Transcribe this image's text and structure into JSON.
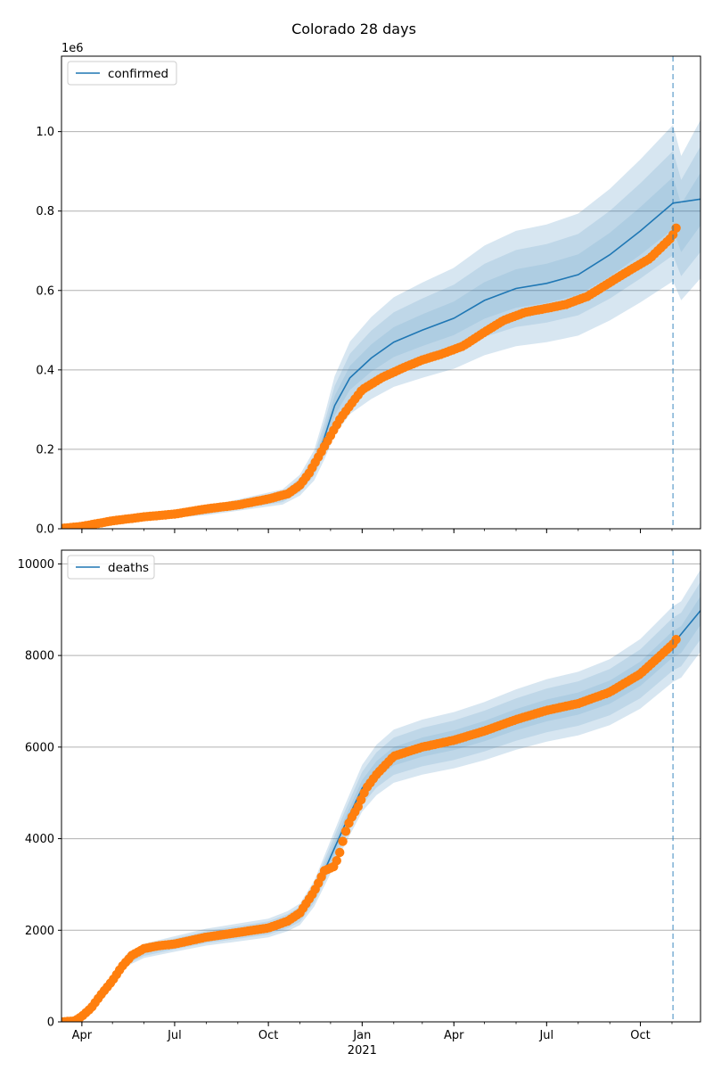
{
  "figure": {
    "title": "Colorado 28 days",
    "colors": {
      "model": "#1f77b4",
      "observed": "#ff7f0e",
      "band": "#1f77b4",
      "grid": "#b0b0b0",
      "cutoff": "#1f77b4"
    }
  },
  "chart_data": [
    {
      "type": "line",
      "name": "confirmed",
      "legend": {
        "label": "confirmed",
        "placement": "top-left"
      },
      "x_range": [
        "2020-03-12",
        "2021-11-29"
      ],
      "ylim": [
        0,
        1190000
      ],
      "y_offset_label": "1e6",
      "y_ticks": [
        0,
        200000,
        400000,
        600000,
        800000,
        1000000
      ],
      "y_tick_labels": [
        "0.0",
        "0.2",
        "0.4",
        "0.6",
        "0.8",
        "1.0"
      ],
      "x_ticks": [
        "2020-04-01",
        "2020-07-01",
        "2020-10-01",
        "2021-01-01",
        "2021-04-01",
        "2021-07-01",
        "2021-10-01"
      ],
      "x_tick_labels": [
        "",
        "",
        "",
        "",
        "",
        "",
        ""
      ],
      "grid": "horizontal",
      "forecast_start": "2021-11-02",
      "model_x": [
        "2020-03-12",
        "2020-05-01",
        "2020-08-01",
        "2020-10-15",
        "2020-11-01",
        "2020-11-15",
        "2020-11-25",
        "2020-12-05",
        "2020-12-20",
        "2021-01-10",
        "2021-02-01",
        "2021-03-01",
        "2021-04-01",
        "2021-05-01",
        "2021-06-01",
        "2021-07-01",
        "2021-08-01",
        "2021-09-01",
        "2021-10-01",
        "2021-11-02",
        "2021-11-29"
      ],
      "model_y": [
        2000,
        20000,
        45000,
        80000,
        110000,
        160000,
        230000,
        310000,
        380000,
        430000,
        470000,
        500000,
        530000,
        575000,
        605000,
        618000,
        640000,
        690000,
        750000,
        820000,
        830000
      ],
      "band_x": [
        "2020-03-12",
        "2020-05-01",
        "2020-08-01",
        "2020-10-15",
        "2020-11-01",
        "2020-11-15",
        "2020-11-25",
        "2020-12-05",
        "2020-12-20",
        "2021-01-10",
        "2021-02-01",
        "2021-03-01",
        "2021-04-01",
        "2021-05-01",
        "2021-06-01",
        "2021-07-01",
        "2021-08-01",
        "2021-09-01",
        "2021-10-01",
        "2021-11-02",
        "2021-11-10",
        "2021-11-29"
      ],
      "band_center": [
        2000,
        20000,
        45000,
        80000,
        110000,
        160000,
        230000,
        310000,
        380000,
        430000,
        470000,
        500000,
        530000,
        575000,
        605000,
        618000,
        640000,
        690000,
        750000,
        820000,
        757000,
        830000
      ],
      "band_half_widths": [
        0.08,
        0.16,
        0.24
      ],
      "band_opacity": [
        0.18,
        0.13,
        0.1
      ],
      "observed_x": [
        "2020-03-12",
        "2020-04-01",
        "2020-05-01",
        "2020-06-01",
        "2020-07-01",
        "2020-08-01",
        "2020-09-01",
        "2020-10-01",
        "2020-10-20",
        "2020-11-01",
        "2020-11-10",
        "2020-11-20",
        "2020-11-30",
        "2020-12-10",
        "2020-12-20",
        "2021-01-01",
        "2021-01-20",
        "2021-02-10",
        "2021-03-01",
        "2021-03-20",
        "2021-04-10",
        "2021-05-01",
        "2021-05-20",
        "2021-06-10",
        "2021-07-01",
        "2021-07-20",
        "2021-08-10",
        "2021-09-01",
        "2021-09-20",
        "2021-10-10",
        "2021-11-01",
        "2021-11-05"
      ],
      "observed_y": [
        1000,
        6000,
        20000,
        30000,
        37000,
        50000,
        60000,
        75000,
        88000,
        110000,
        140000,
        185000,
        230000,
        275000,
        310000,
        350000,
        380000,
        405000,
        425000,
        440000,
        460000,
        495000,
        525000,
        545000,
        555000,
        565000,
        585000,
        620000,
        650000,
        680000,
        735000,
        757000
      ]
    },
    {
      "type": "line",
      "name": "deaths",
      "legend": {
        "label": "deaths",
        "placement": "top-left"
      },
      "x_range": [
        "2020-03-12",
        "2021-11-29"
      ],
      "ylim": [
        0,
        10300
      ],
      "y_ticks": [
        0,
        2000,
        4000,
        6000,
        8000,
        10000
      ],
      "y_tick_labels": [
        "0",
        "2000",
        "4000",
        "6000",
        "8000",
        "10000"
      ],
      "x_ticks": [
        "2020-04-01",
        "2020-07-01",
        "2020-10-01",
        "2021-01-01",
        "2021-04-01",
        "2021-07-01",
        "2021-10-01"
      ],
      "x_tick_labels": [
        "Apr",
        "Jul",
        "Oct",
        "Jan",
        "Apr",
        "Jul",
        "Oct"
      ],
      "x_secondary_label": "2021",
      "grid": "horizontal",
      "forecast_start": "2021-11-02",
      "model_x": [
        "2020-03-12",
        "2020-03-25",
        "2020-04-01",
        "2020-04-15",
        "2020-05-01",
        "2020-05-15",
        "2020-06-01",
        "2020-07-01",
        "2020-08-01",
        "2020-09-01",
        "2020-10-01",
        "2020-10-20",
        "2020-11-01",
        "2020-11-15",
        "2020-12-01",
        "2020-12-15",
        "2021-01-01",
        "2021-01-15",
        "2021-02-01",
        "2021-03-01",
        "2021-04-01",
        "2021-05-01",
        "2021-06-01",
        "2021-07-01",
        "2021-08-01",
        "2021-09-01",
        "2021-10-01",
        "2021-11-02",
        "2021-11-29"
      ],
      "model_y": [
        10,
        30,
        100,
        450,
        900,
        1350,
        1550,
        1700,
        1850,
        1950,
        2050,
        2200,
        2350,
        2800,
        3600,
        4300,
        5100,
        5500,
        5800,
        6000,
        6150,
        6350,
        6600,
        6800,
        6950,
        7200,
        7600,
        8250,
        8980
      ],
      "band_x": [
        "2020-03-12",
        "2020-03-25",
        "2020-04-01",
        "2020-04-15",
        "2020-05-01",
        "2020-05-15",
        "2020-06-01",
        "2020-07-01",
        "2020-08-01",
        "2020-09-01",
        "2020-10-01",
        "2020-10-20",
        "2020-11-01",
        "2020-11-15",
        "2020-12-01",
        "2020-12-15",
        "2021-01-01",
        "2021-01-15",
        "2021-02-01",
        "2021-03-01",
        "2021-04-01",
        "2021-05-01",
        "2021-06-01",
        "2021-07-01",
        "2021-08-01",
        "2021-09-01",
        "2021-10-01",
        "2021-11-02",
        "2021-11-10",
        "2021-11-29"
      ],
      "band_center": [
        10,
        30,
        100,
        450,
        900,
        1350,
        1550,
        1700,
        1850,
        1950,
        2050,
        2200,
        2350,
        2800,
        3600,
        4300,
        5100,
        5500,
        5800,
        6000,
        6150,
        6350,
        6600,
        6800,
        6950,
        7200,
        7600,
        8250,
        8350,
        8980
      ],
      "band_half_widths": [
        0.035,
        0.07,
        0.1
      ],
      "band_opacity": [
        0.18,
        0.13,
        0.1
      ],
      "observed_x": [
        "2020-03-12",
        "2020-03-25",
        "2020-04-01",
        "2020-04-10",
        "2020-04-20",
        "2020-05-01",
        "2020-05-10",
        "2020-05-20",
        "2020-06-01",
        "2020-06-15",
        "2020-07-01",
        "2020-08-01",
        "2020-09-01",
        "2020-10-01",
        "2020-10-20",
        "2020-11-01",
        "2020-11-15",
        "2020-11-25",
        "2020-12-05",
        "2020-12-10",
        "2020-12-15",
        "2020-12-20",
        "2020-12-28",
        "2021-01-05",
        "2021-01-15",
        "2021-02-01",
        "2021-03-01",
        "2021-04-01",
        "2021-05-01",
        "2021-06-01",
        "2021-07-01",
        "2021-08-01",
        "2021-09-01",
        "2021-10-01",
        "2021-11-02",
        "2021-11-05"
      ],
      "observed_y": [
        0,
        20,
        120,
        300,
        600,
        900,
        1200,
        1450,
        1600,
        1660,
        1700,
        1850,
        1950,
        2050,
        2200,
        2380,
        2850,
        3300,
        3400,
        3700,
        4100,
        4400,
        4700,
        5100,
        5400,
        5800,
        6000,
        6150,
        6350,
        6600,
        6800,
        6950,
        7200,
        7600,
        8250,
        8350
      ]
    }
  ]
}
